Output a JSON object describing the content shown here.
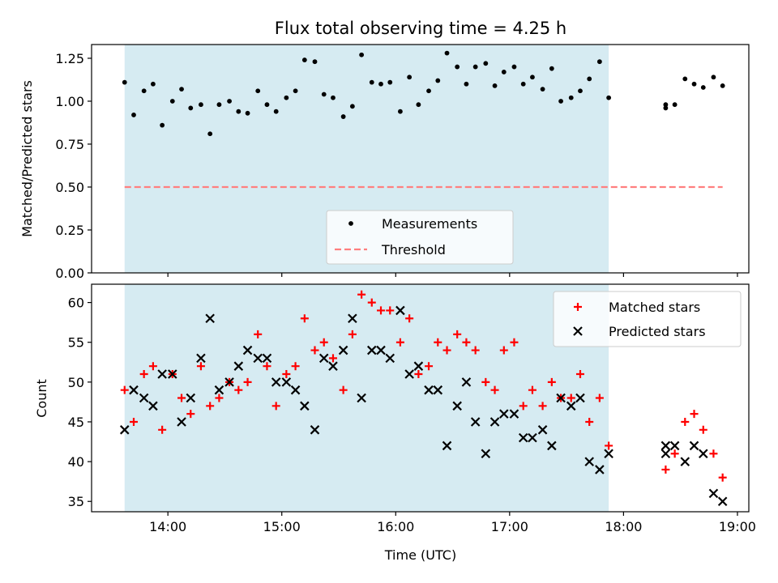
{
  "chart_data": [
    {
      "type": "scatter",
      "title": "Flux total observing time = 4.25 h",
      "xlabel": "",
      "ylabel": "Matched/Predicted stars",
      "xlim": [
        13.33,
        19.1
      ],
      "ylim": [
        0.0,
        1.33
      ],
      "yticks": [
        0.0,
        0.25,
        0.5,
        0.75,
        1.0,
        1.25
      ],
      "ytick_labels": [
        "0.00",
        "0.25",
        "0.50",
        "0.75",
        "1.00",
        "1.25"
      ],
      "xticks": [
        14,
        15,
        16,
        17,
        18,
        19
      ],
      "shaded_span": {
        "x": [
          13.62,
          17.87
        ],
        "color": "#add8e6"
      },
      "legend_position": "lower-center",
      "series": [
        {
          "name": "Measurements",
          "marker": "dot",
          "color": "#000000",
          "x": [
            13.62,
            13.7,
            13.79,
            13.87,
            13.95,
            14.04,
            14.12,
            14.2,
            14.29,
            14.37,
            14.45,
            14.54,
            14.62,
            14.7,
            14.79,
            14.87,
            14.95,
            15.04,
            15.12,
            15.2,
            15.29,
            15.37,
            15.45,
            15.54,
            15.62,
            15.7,
            15.79,
            15.87,
            15.95,
            16.04,
            16.12,
            16.2,
            16.29,
            16.37,
            16.45,
            16.54,
            16.62,
            16.7,
            16.79,
            16.87,
            16.95,
            17.04,
            17.12,
            17.2,
            17.29,
            17.37,
            17.45,
            17.54,
            17.62,
            17.7,
            17.79,
            17.87,
            18.37,
            18.37,
            18.45,
            18.54,
            18.62,
            18.7,
            18.79,
            18.87
          ],
          "y": [
            1.11,
            0.92,
            1.06,
            1.1,
            0.86,
            1.0,
            1.07,
            0.96,
            0.98,
            0.81,
            0.98,
            1.0,
            0.94,
            0.93,
            1.06,
            0.98,
            0.94,
            1.02,
            1.06,
            1.24,
            1.23,
            1.04,
            1.02,
            0.91,
            0.97,
            1.27,
            1.11,
            1.1,
            1.11,
            0.94,
            1.14,
            0.98,
            1.06,
            1.12,
            1.28,
            1.2,
            1.1,
            1.2,
            1.22,
            1.09,
            1.17,
            1.2,
            1.1,
            1.14,
            1.07,
            1.19,
            1.0,
            1.02,
            1.06,
            1.13,
            1.23,
            1.02,
            0.96,
            0.98,
            0.98,
            1.13,
            1.1,
            1.08,
            1.14,
            1.09
          ]
        },
        {
          "name": "Threshold",
          "marker": "dashed-line",
          "color": "#ff7f7f",
          "x": [
            13.62,
            18.87
          ],
          "y": [
            0.5,
            0.5
          ]
        }
      ]
    },
    {
      "type": "scatter",
      "title": "",
      "xlabel": "Time (UTC)",
      "ylabel": "Count",
      "xlim": [
        13.33,
        19.1
      ],
      "ylim": [
        33.7,
        62.3
      ],
      "yticks": [
        35,
        40,
        45,
        50,
        55,
        60
      ],
      "ytick_labels": [
        "35",
        "40",
        "45",
        "50",
        "55",
        "60"
      ],
      "xticks": [
        14,
        15,
        16,
        17,
        18,
        19
      ],
      "xtick_labels": [
        "14:00",
        "15:00",
        "16:00",
        "17:00",
        "18:00",
        "19:00"
      ],
      "shaded_span": {
        "x": [
          13.62,
          17.87
        ],
        "color": "#add8e6"
      },
      "legend_position": "upper-right",
      "series": [
        {
          "name": "Matched stars",
          "marker": "plus",
          "color": "#ff0000",
          "x": [
            13.62,
            13.7,
            13.79,
            13.87,
            13.95,
            14.04,
            14.12,
            14.2,
            14.29,
            14.37,
            14.45,
            14.54,
            14.62,
            14.7,
            14.79,
            14.87,
            14.95,
            15.04,
            15.12,
            15.2,
            15.29,
            15.37,
            15.45,
            15.54,
            15.62,
            15.7,
            15.79,
            15.87,
            15.95,
            16.04,
            16.12,
            16.2,
            16.29,
            16.37,
            16.45,
            16.54,
            16.62,
            16.7,
            16.79,
            16.87,
            16.95,
            17.04,
            17.12,
            17.2,
            17.29,
            17.37,
            17.45,
            17.54,
            17.62,
            17.7,
            17.79,
            17.87,
            18.37,
            18.45,
            18.54,
            18.62,
            18.7,
            18.79,
            18.87
          ],
          "y": [
            49,
            45,
            51,
            52,
            44,
            51,
            48,
            46,
            52,
            47,
            48,
            50,
            49,
            50,
            56,
            52,
            47,
            51,
            52,
            58,
            54,
            55,
            53,
            49,
            56,
            61,
            60,
            59,
            59,
            55,
            58,
            51,
            52,
            55,
            54,
            56,
            55,
            54,
            50,
            49,
            54,
            55,
            47,
            49,
            47,
            50,
            48,
            48,
            51,
            45,
            48,
            42,
            39,
            41,
            45,
            46,
            44,
            41,
            38
          ]
        },
        {
          "name": "Predicted stars",
          "marker": "x",
          "color": "#000000",
          "x": [
            13.62,
            13.7,
            13.79,
            13.87,
            13.95,
            14.04,
            14.12,
            14.2,
            14.29,
            14.37,
            14.45,
            14.54,
            14.62,
            14.7,
            14.79,
            14.87,
            14.95,
            15.04,
            15.12,
            15.2,
            15.29,
            15.37,
            15.45,
            15.54,
            15.62,
            15.7,
            15.79,
            15.87,
            15.95,
            16.04,
            16.12,
            16.2,
            16.29,
            16.37,
            16.45,
            16.54,
            16.62,
            16.7,
            16.79,
            16.87,
            16.95,
            17.04,
            17.12,
            17.2,
            17.29,
            17.37,
            17.45,
            17.54,
            17.62,
            17.7,
            17.79,
            17.87,
            18.37,
            18.37,
            18.45,
            18.54,
            18.62,
            18.7,
            18.79,
            18.87
          ],
          "y": [
            44,
            49,
            48,
            47,
            51,
            51,
            45,
            48,
            53,
            58,
            49,
            50,
            52,
            54,
            53,
            53,
            50,
            50,
            49,
            47,
            44,
            53,
            52,
            54,
            58,
            48,
            54,
            54,
            53,
            59,
            51,
            52,
            49,
            49,
            42,
            47,
            50,
            45,
            41,
            45,
            46,
            46,
            43,
            43,
            44,
            42,
            48,
            47,
            48,
            40,
            39,
            41,
            41,
            42,
            42,
            40,
            42,
            41,
            36,
            35
          ]
        }
      ]
    }
  ]
}
